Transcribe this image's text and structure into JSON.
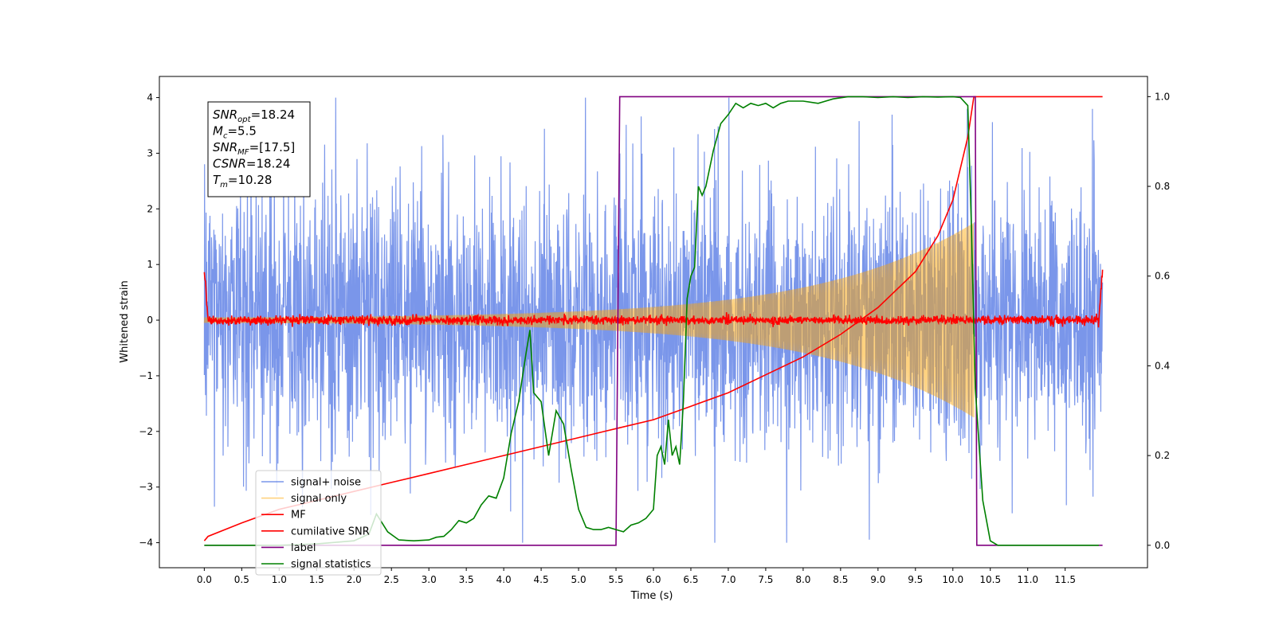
{
  "chart_data": {
    "type": "line",
    "xlabel": "Time (s)",
    "ylabel": "Whitened strain",
    "xlim": [
      -0.6,
      12.6
    ],
    "ylim": [
      -4.45,
      4.38
    ],
    "ylim_right": [
      -0.05,
      1.045
    ],
    "x_ticks": [
      "0.0",
      "0.5",
      "1.0",
      "1.5",
      "2.0",
      "2.5",
      "3.0",
      "3.5",
      "4.0",
      "4.5",
      "5.0",
      "5.5",
      "6.0",
      "6.5",
      "7.0",
      "7.5",
      "8.0",
      "8.5",
      "9.0",
      "9.5",
      "10.0",
      "10.5",
      "11.0",
      "11.5"
    ],
    "y_ticks": [
      "−4",
      "−3",
      "−2",
      "−1",
      "0",
      "1",
      "2",
      "3",
      "4"
    ],
    "y_ticks_right": [
      "0.0",
      "0.2",
      "0.4",
      "0.6",
      "0.8",
      "1.0"
    ],
    "grid": false,
    "legend_position": "lower-left",
    "annotation": {
      "lines": [
        {
          "base": "SNR",
          "sub": "opt",
          "rest": "=18.24"
        },
        {
          "base": "M",
          "sub": "c",
          "rest": "=5.5"
        },
        {
          "base": "SNR",
          "sub": "MF",
          "rest": "=[17.5]"
        },
        {
          "base": "CSNR",
          "sub": "",
          "rest": "=18.24"
        },
        {
          "base": "T",
          "sub": "m",
          "rest": "=10.28"
        }
      ]
    },
    "series": [
      {
        "name": "signal+ noise",
        "color": "#4169e1",
        "axis": "left",
        "style": "noise",
        "x_range": [
          0,
          12.0
        ],
        "amplitude": 4.0
      },
      {
        "name": "signal only",
        "color": "#ffa500",
        "axis": "left",
        "style": "chirp",
        "x_range": [
          0,
          10.28
        ],
        "amplitude_start": 0.05,
        "amplitude_end": 1.3
      },
      {
        "name": "MF",
        "color": "#ff0000",
        "axis": "left",
        "style": "noise-small",
        "x_range": [
          0,
          12.0
        ],
        "amplitude": 0.1
      },
      {
        "name": "cumilative SNR",
        "color": "#ff0000",
        "axis": "right",
        "x": [
          0.0,
          0.05,
          0.5,
          1.0,
          1.5,
          2.0,
          2.5,
          3.0,
          3.5,
          4.0,
          4.5,
          5.0,
          5.5,
          6.0,
          6.5,
          7.0,
          7.5,
          8.0,
          8.5,
          9.0,
          9.5,
          9.8,
          10.0,
          10.2,
          10.28,
          12.0
        ],
        "values": [
          0.01,
          0.02,
          0.05,
          0.08,
          0.1,
          0.12,
          0.14,
          0.16,
          0.18,
          0.2,
          0.22,
          0.24,
          0.26,
          0.28,
          0.31,
          0.34,
          0.38,
          0.42,
          0.47,
          0.53,
          0.61,
          0.69,
          0.77,
          0.91,
          1.0,
          1.0
        ]
      },
      {
        "name": "label",
        "color": "#800080",
        "axis": "right",
        "x": [
          0.0,
          5.5,
          5.55,
          10.3,
          10.32,
          12.0
        ],
        "values": [
          0.0,
          0.0,
          1.0,
          1.0,
          0.0,
          0.0
        ]
      },
      {
        "name": "signal statistics",
        "color": "#008000",
        "axis": "right",
        "x": [
          0.0,
          0.5,
          1.0,
          1.5,
          2.0,
          2.2,
          2.3,
          2.45,
          2.6,
          2.8,
          3.0,
          3.1,
          3.2,
          3.3,
          3.4,
          3.5,
          3.6,
          3.7,
          3.8,
          3.9,
          4.0,
          4.1,
          4.2,
          4.3,
          4.35,
          4.4,
          4.5,
          4.6,
          4.7,
          4.8,
          4.9,
          5.0,
          5.1,
          5.2,
          5.3,
          5.4,
          5.5,
          5.6,
          5.7,
          5.8,
          5.9,
          6.0,
          6.05,
          6.1,
          6.15,
          6.2,
          6.25,
          6.3,
          6.35,
          6.4,
          6.45,
          6.5,
          6.55,
          6.6,
          6.65,
          6.7,
          6.8,
          6.9,
          7.0,
          7.1,
          7.2,
          7.3,
          7.4,
          7.5,
          7.6,
          7.7,
          7.8,
          8.0,
          8.2,
          8.4,
          8.6,
          8.8,
          9.0,
          9.2,
          9.4,
          9.6,
          9.8,
          10.0,
          10.1,
          10.2,
          10.25,
          10.3,
          10.4,
          10.5,
          10.6,
          11.0,
          11.5,
          11.95
        ],
        "values": [
          0.0,
          0.0,
          0.0,
          0.003,
          0.01,
          0.025,
          0.07,
          0.03,
          0.012,
          0.01,
          0.012,
          0.018,
          0.02,
          0.035,
          0.055,
          0.05,
          0.06,
          0.09,
          0.11,
          0.105,
          0.15,
          0.25,
          0.32,
          0.43,
          0.48,
          0.34,
          0.32,
          0.2,
          0.3,
          0.27,
          0.17,
          0.08,
          0.04,
          0.035,
          0.035,
          0.04,
          0.035,
          0.03,
          0.045,
          0.05,
          0.06,
          0.08,
          0.2,
          0.22,
          0.18,
          0.28,
          0.2,
          0.22,
          0.18,
          0.32,
          0.55,
          0.6,
          0.62,
          0.8,
          0.78,
          0.8,
          0.88,
          0.94,
          0.96,
          0.985,
          0.975,
          0.985,
          0.98,
          0.985,
          0.975,
          0.985,
          0.99,
          0.99,
          0.985,
          0.995,
          1.0,
          1.0,
          0.998,
          1.0,
          0.998,
          1.0,
          0.999,
          1.0,
          0.998,
          0.98,
          0.7,
          0.35,
          0.1,
          0.01,
          0.0,
          0.0,
          0.0,
          0.0
        ]
      }
    ]
  }
}
